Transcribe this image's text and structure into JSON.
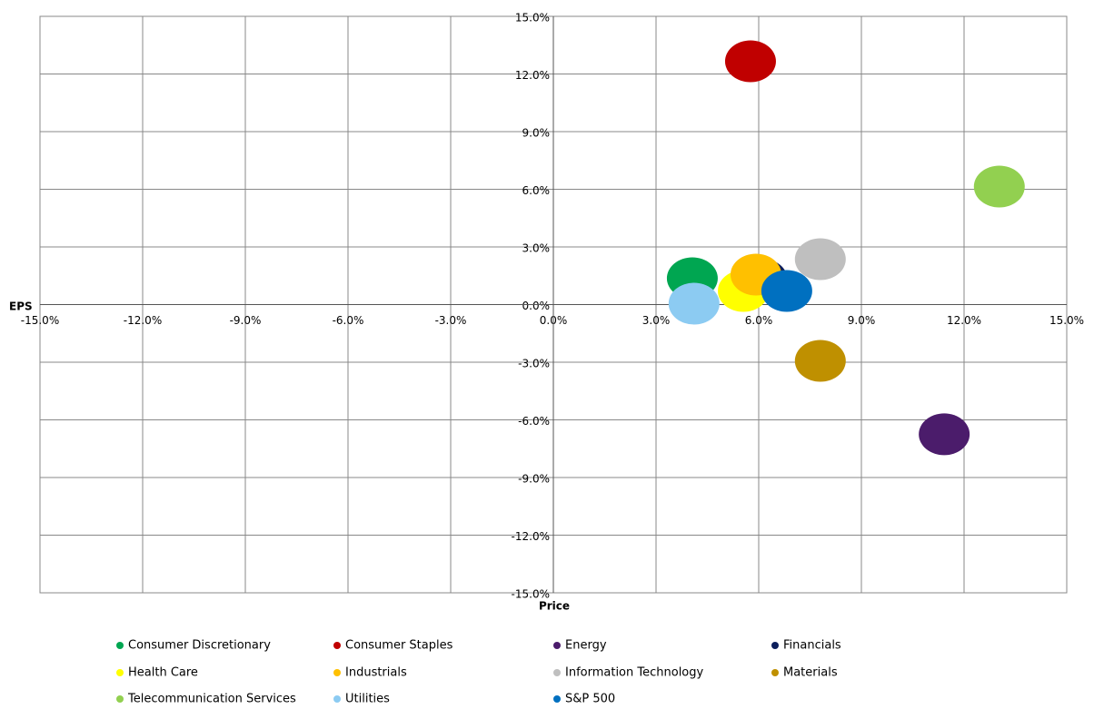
{
  "chart_data": {
    "type": "scatter",
    "x_label": "Price",
    "y_label": "EPS",
    "xlim": [
      -15,
      15
    ],
    "ylim": [
      -15,
      15
    ],
    "xticks": [
      {
        "value": -15,
        "label": "-15.0%"
      },
      {
        "value": -12,
        "label": "-12.0%"
      },
      {
        "value": -9,
        "label": "-9.0%"
      },
      {
        "value": -6,
        "label": "-6.0%"
      },
      {
        "value": -3,
        "label": "-3.0%"
      },
      {
        "value": 0,
        "label": "0.0%"
      },
      {
        "value": 3,
        "label": "3.0%"
      },
      {
        "value": 6,
        "label": "6.0%"
      },
      {
        "value": 9,
        "label": "9.0%"
      },
      {
        "value": 12,
        "label": "12.0%"
      },
      {
        "value": 15,
        "label": "15.0%"
      }
    ],
    "yticks": [
      {
        "value": -15,
        "label": "-15.0%"
      },
      {
        "value": -12,
        "label": "-12.0%"
      },
      {
        "value": -9,
        "label": "-9.0%"
      },
      {
        "value": -6,
        "label": "-6.0%"
      },
      {
        "value": -3,
        "label": "-3.0%"
      },
      {
        "value": 0,
        "label": "0.0%"
      },
      {
        "value": 3,
        "label": "3.0%"
      },
      {
        "value": 6,
        "label": "6.0%"
      },
      {
        "value": 9,
        "label": "9.0%"
      },
      {
        "value": 12,
        "label": "12.0%"
      },
      {
        "value": 15,
        "label": "15.0%"
      }
    ],
    "grid": true,
    "legend": "bottom",
    "series": [
      {
        "name": "Consumer Discretionary",
        "color": "#00a651",
        "x": [
          4.06
        ],
        "values": [
          1.37
        ]
      },
      {
        "name": "Consumer Staples",
        "color": "#c00000",
        "x": [
          5.76
        ],
        "values": [
          12.66
        ]
      },
      {
        "name": "Energy",
        "color": "#4b1c6b",
        "x": [
          11.42
        ],
        "values": [
          -6.75
        ]
      },
      {
        "name": "Financials",
        "color": "#0d1f5c",
        "x": [
          6.1
        ],
        "values": [
          1.3
        ]
      },
      {
        "name": "Health Care",
        "color": "#ffff00",
        "x": [
          5.55
        ],
        "values": [
          0.71
        ]
      },
      {
        "name": "Industrials",
        "color": "#ffc000",
        "x": [
          5.92
        ],
        "values": [
          1.56
        ]
      },
      {
        "name": "Information Technology",
        "color": "#bfbfbf",
        "x": [
          7.8
        ],
        "values": [
          2.36
        ]
      },
      {
        "name": "Materials",
        "color": "#bf9000",
        "x": [
          7.8
        ],
        "values": [
          -2.93
        ]
      },
      {
        "name": "Telecommunication Services",
        "color": "#92d050",
        "x": [
          13.03
        ],
        "values": [
          6.14
        ]
      },
      {
        "name": "Utilities",
        "color": "#8ccbf2",
        "x": [
          4.11
        ],
        "values": [
          0.05
        ]
      },
      {
        "name": "S&P 500",
        "color": "#0070c0",
        "x": [
          6.82
        ],
        "values": [
          0.71
        ]
      }
    ]
  }
}
